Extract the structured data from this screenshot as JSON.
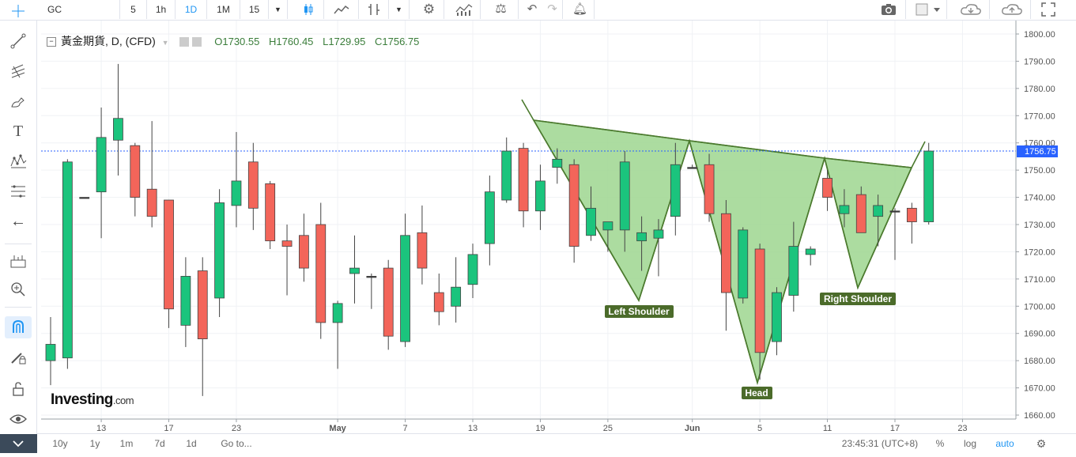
{
  "toolbar": {
    "symbol": "GC",
    "intervals": [
      "5",
      "1h",
      "1D",
      "1M",
      "15"
    ],
    "active_interval": "1D"
  },
  "legend": {
    "title": "黃金期貨, D, (CFD)",
    "open": "O1730.55",
    "high": "H1760.45",
    "low": "L1729.95",
    "close": "C1756.75"
  },
  "logo": {
    "name": "Investing",
    "suffix": ".com"
  },
  "price_axis": {
    "labels": [
      "1800.00",
      "1790.00",
      "1780.00",
      "1770.00",
      "1760.00",
      "1750.00",
      "1740.00",
      "1730.00",
      "1720.00",
      "1710.00",
      "1700.00",
      "1690.00",
      "1680.00",
      "1670.00",
      "1660.00"
    ],
    "last_price": "1756.75"
  },
  "time_axis": {
    "labels": [
      "13",
      "17",
      "23",
      "May",
      "7",
      "13",
      "19",
      "25",
      "Jun",
      "5",
      "11",
      "17",
      "23"
    ]
  },
  "pattern_labels": {
    "left": "Left Shoulder",
    "head": "Head",
    "right": "Right Shoulder"
  },
  "bottombar": {
    "ranges": [
      "10y",
      "1y",
      "1m",
      "7d",
      "1d",
      "Go to..."
    ],
    "time": "23:45:31 (UTC+8)",
    "percent": "%",
    "log": "log",
    "auto": "auto"
  },
  "colors": {
    "up": "#1bc47d",
    "down": "#f3655a",
    "pattern_fill": "#9ed68f",
    "pattern_stroke": "#4b7a2e",
    "accent": "#2196f3"
  },
  "chart_data": {
    "type": "candlestick",
    "price_range": [
      1656,
      1802
    ],
    "candles": [
      {
        "o": 1680,
        "h": 1696,
        "l": 1671,
        "c": 1686
      },
      {
        "o": 1681,
        "h": 1754,
        "l": 1677,
        "c": 1753
      },
      {
        "o": 1740,
        "h": 1740,
        "l": 1740,
        "c": 1740
      },
      {
        "o": 1742,
        "h": 1773,
        "l": 1725,
        "c": 1762
      },
      {
        "o": 1761,
        "h": 1789,
        "l": 1748,
        "c": 1769
      },
      {
        "o": 1759,
        "h": 1760,
        "l": 1733,
        "c": 1740
      },
      {
        "o": 1743,
        "h": 1768,
        "l": 1729,
        "c": 1733
      },
      {
        "o": 1739,
        "h": 1739,
        "l": 1692,
        "c": 1699
      },
      {
        "o": 1693,
        "h": 1718,
        "l": 1685,
        "c": 1711
      },
      {
        "o": 1713,
        "h": 1718,
        "l": 1667,
        "c": 1688
      },
      {
        "o": 1703,
        "h": 1743,
        "l": 1696,
        "c": 1738
      },
      {
        "o": 1737,
        "h": 1764,
        "l": 1729,
        "c": 1746
      },
      {
        "o": 1753,
        "h": 1760,
        "l": 1728,
        "c": 1736
      },
      {
        "o": 1745,
        "h": 1746,
        "l": 1721,
        "c": 1724
      },
      {
        "o": 1724,
        "h": 1730,
        "l": 1704,
        "c": 1722
      },
      {
        "o": 1726,
        "h": 1734,
        "l": 1709,
        "c": 1714
      },
      {
        "o": 1730,
        "h": 1738,
        "l": 1688,
        "c": 1694
      },
      {
        "o": 1694,
        "h": 1702,
        "l": 1677,
        "c": 1701
      },
      {
        "o": 1712,
        "h": 1726,
        "l": 1701,
        "c": 1714
      },
      {
        "o": 1711,
        "h": 1712,
        "l": 1699,
        "c": 1711
      },
      {
        "o": 1714,
        "h": 1717,
        "l": 1684,
        "c": 1689
      },
      {
        "o": 1687,
        "h": 1734,
        "l": 1685,
        "c": 1726
      },
      {
        "o": 1727,
        "h": 1737,
        "l": 1708,
        "c": 1714
      },
      {
        "o": 1705,
        "h": 1712,
        "l": 1693,
        "c": 1698
      },
      {
        "o": 1700,
        "h": 1718,
        "l": 1694,
        "c": 1707
      },
      {
        "o": 1708,
        "h": 1723,
        "l": 1703,
        "c": 1719
      },
      {
        "o": 1723,
        "h": 1748,
        "l": 1715,
        "c": 1742
      },
      {
        "o": 1739,
        "h": 1762,
        "l": 1738,
        "c": 1757
      },
      {
        "o": 1758,
        "h": 1760,
        "l": 1729,
        "c": 1735
      },
      {
        "o": 1735,
        "h": 1752,
        "l": 1728,
        "c": 1746
      },
      {
        "o": 1751,
        "h": 1758,
        "l": 1745,
        "c": 1754
      },
      {
        "o": 1752,
        "h": 1754,
        "l": 1716,
        "c": 1722
      },
      {
        "o": 1726,
        "h": 1744,
        "l": 1724,
        "c": 1736
      },
      {
        "o": 1728,
        "h": 1730,
        "l": 1720,
        "c": 1731
      },
      {
        "o": 1728,
        "h": 1757,
        "l": 1720,
        "c": 1753
      },
      {
        "o": 1724,
        "h": 1733,
        "l": 1713,
        "c": 1727
      },
      {
        "o": 1725,
        "h": 1732,
        "l": 1711,
        "c": 1728
      },
      {
        "o": 1733,
        "h": 1760,
        "l": 1726,
        "c": 1752
      },
      {
        "o": 1751,
        "h": 1752,
        "l": 1751,
        "c": 1751
      },
      {
        "o": 1752,
        "h": 1756,
        "l": 1731,
        "c": 1734
      },
      {
        "o": 1734,
        "h": 1739,
        "l": 1691,
        "c": 1705
      },
      {
        "o": 1703,
        "h": 1729,
        "l": 1701,
        "c": 1728
      },
      {
        "o": 1721,
        "h": 1723,
        "l": 1673,
        "c": 1683
      },
      {
        "o": 1687,
        "h": 1707,
        "l": 1682,
        "c": 1705
      },
      {
        "o": 1704,
        "h": 1731,
        "l": 1698,
        "c": 1722
      },
      {
        "o": 1719,
        "h": 1722,
        "l": 1715,
        "c": 1721
      },
      {
        "o": 1747,
        "h": 1750,
        "l": 1735,
        "c": 1740
      },
      {
        "o": 1734,
        "h": 1743,
        "l": 1729,
        "c": 1737
      },
      {
        "o": 1741,
        "h": 1744,
        "l": 1727,
        "c": 1727
      },
      {
        "o": 1733,
        "h": 1741,
        "l": 1722,
        "c": 1737
      },
      {
        "o": 1735,
        "h": 1736,
        "l": 1717,
        "c": 1735
      },
      {
        "o": 1736,
        "h": 1738,
        "l": 1723,
        "c": 1731
      },
      {
        "o": 1731,
        "h": 1760,
        "l": 1730,
        "c": 1757
      }
    ]
  }
}
